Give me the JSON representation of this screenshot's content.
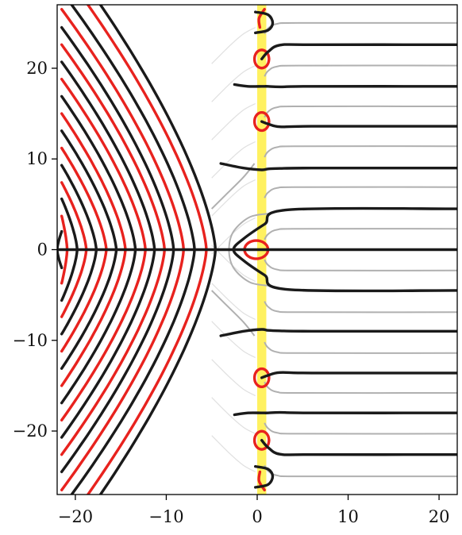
{
  "chart_data": {
    "type": "line",
    "title": "",
    "xlabel": "",
    "ylabel": "",
    "xlim": [
      -22,
      22
    ],
    "ylim": [
      -27,
      27
    ],
    "grid": false,
    "legend": "none",
    "x_ticks": [
      {
        "value": -20,
        "label": "−20"
      },
      {
        "value": -10,
        "label": "−10"
      },
      {
        "value": 0,
        "label": "0"
      },
      {
        "value": 10,
        "label": "10"
      },
      {
        "value": 20,
        "label": "20"
      }
    ],
    "y_ticks": [
      {
        "value": 20,
        "label": "20"
      },
      {
        "value": 10,
        "label": "10"
      },
      {
        "value": 0,
        "label": "0"
      },
      {
        "value": -10,
        "label": "−10"
      },
      {
        "value": -20,
        "label": "−20"
      }
    ],
    "critical_strip": {
      "x_from": 0,
      "x_to": 1,
      "color": "#ffee44"
    },
    "colors": {
      "real_zero_contours": "#1a1a1a",
      "imag_zero_contours": "#e8221e",
      "modulus_contours": "#b0b0b0",
      "faint_contours": "#e0e0e0"
    },
    "zeta_zeros_imag": [
      14.13,
      21.02,
      25.01
    ],
    "trivial_zeros_real": [
      -2,
      -4,
      -6,
      -8,
      -10,
      -12,
      -14,
      -16,
      -18,
      -20,
      -22
    ],
    "pole": {
      "x": 1,
      "y": 0
    },
    "black_contour_right_asymptotes": [
      4.5,
      9.0,
      13.6,
      18.0,
      22.6
    ],
    "gray_contour_right_asymptotes": [
      2.3,
      6.9,
      11.4,
      15.8,
      20.3,
      25.0
    ]
  }
}
